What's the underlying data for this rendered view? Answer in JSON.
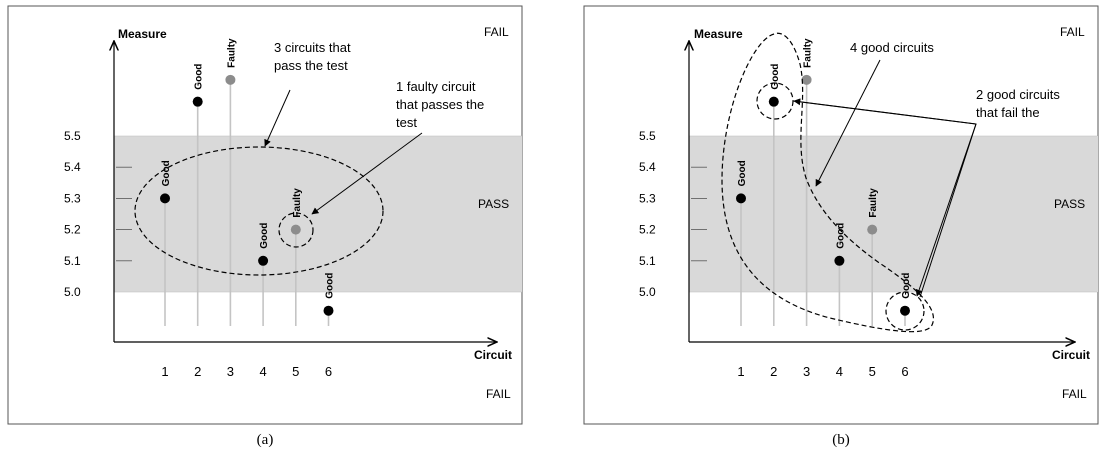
{
  "colors": {
    "pass_band": "#d9d9d9",
    "frame": "#555555",
    "good_point": "#000000",
    "faulty_point": "#8c8c8c",
    "stem": "#c4c4c4",
    "annotation": "#000000"
  },
  "panels": [
    {
      "id": "a",
      "caption": "(a)",
      "y_axis_label": "Measure",
      "x_axis_label": "Circuit",
      "region_labels": {
        "fail_top": "FAIL",
        "pass": "PASS",
        "fail_bottom": "FAIL"
      },
      "pass_band": [
        5.0,
        5.5
      ],
      "y_ticks": [
        "5.0",
        "5.1",
        "5.2",
        "5.3",
        "5.4",
        "5.5"
      ],
      "x_ticks": [
        "1",
        "2",
        "3",
        "4",
        "5",
        "6"
      ],
      "circuits": [
        {
          "circuit": 1,
          "label": "Good",
          "measure": 5.3,
          "status": "good"
        },
        {
          "circuit": 2,
          "label": "Good",
          "measure": 5.61,
          "status": "good"
        },
        {
          "circuit": 3,
          "label": "Faulty",
          "measure": 5.68,
          "status": "faulty"
        },
        {
          "circuit": 4,
          "label": "Good",
          "measure": 5.1,
          "status": "good"
        },
        {
          "circuit": 5,
          "label": "Faulty",
          "measure": 5.2,
          "status": "faulty"
        },
        {
          "circuit": 6,
          "label": "Good",
          "measure": 4.94,
          "status": "good"
        }
      ],
      "annotations": [
        "3 circuits that pass the test",
        "1 faulty circuit that passes the test"
      ]
    },
    {
      "id": "b",
      "caption": "(b)",
      "y_axis_label": "Measure",
      "x_axis_label": "Circuit",
      "region_labels": {
        "fail_top": "FAIL",
        "pass": "PASS",
        "fail_bottom": "FAIL"
      },
      "pass_band": [
        5.0,
        5.5
      ],
      "y_ticks": [
        "5.0",
        "5.1",
        "5.2",
        "5.3",
        "5.4",
        "5.5"
      ],
      "x_ticks": [
        "1",
        "2",
        "3",
        "4",
        "5",
        "6"
      ],
      "circuits": [
        {
          "circuit": 1,
          "label": "Good",
          "measure": 5.3,
          "status": "good"
        },
        {
          "circuit": 2,
          "label": "Good",
          "measure": 5.61,
          "status": "good"
        },
        {
          "circuit": 3,
          "label": "Faulty",
          "measure": 5.68,
          "status": "faulty"
        },
        {
          "circuit": 4,
          "label": "Good",
          "measure": 5.1,
          "status": "good"
        },
        {
          "circuit": 5,
          "label": "Faulty",
          "measure": 5.2,
          "status": "faulty"
        },
        {
          "circuit": 6,
          "label": "Good",
          "measure": 4.94,
          "status": "good"
        }
      ],
      "annotations": [
        "4 good circuits",
        "2 good circuits that fail the test"
      ]
    }
  ]
}
